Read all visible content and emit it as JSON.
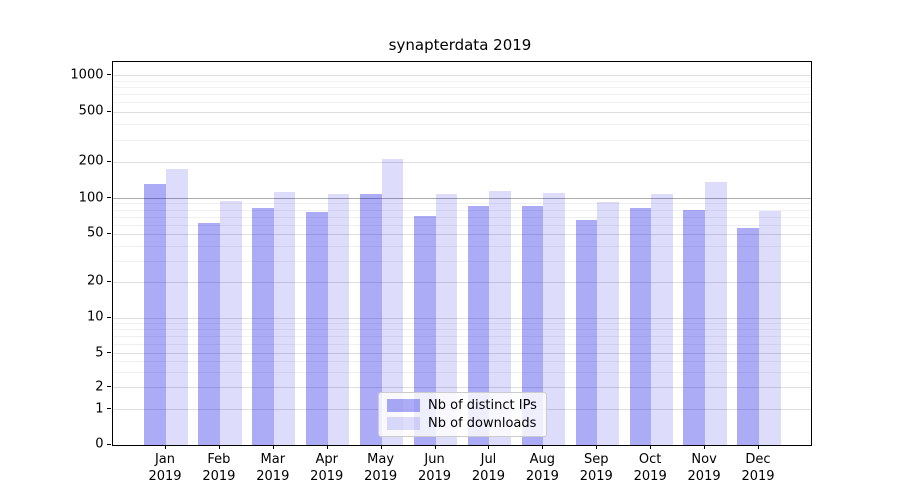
{
  "chart_data": {
    "type": "bar",
    "title": "synapterdata 2019",
    "grid": true,
    "yscale": "symlog",
    "yticks": [
      0,
      1,
      2,
      5,
      10,
      20,
      50,
      100,
      200,
      500,
      1000
    ],
    "minor_gridline_values": [
      3,
      4,
      6,
      7,
      8,
      9,
      30,
      40,
      60,
      70,
      80,
      90,
      300,
      400,
      600,
      700,
      800,
      900
    ],
    "months": [
      "Jan",
      "Feb",
      "Mar",
      "Apr",
      "May",
      "Jun",
      "Jul",
      "Aug",
      "Sep",
      "Oct",
      "Nov",
      "Dec"
    ],
    "year_label": "2019",
    "series": [
      {
        "name": "Nb of distinct IPs",
        "key": "distinct-ips",
        "color": "#a9a9f7",
        "fill": "rgba(13,13,230,0.35)",
        "values": [
          131,
          62,
          82,
          76,
          108,
          71,
          85,
          86,
          65,
          82,
          79,
          56
        ]
      },
      {
        "name": "Nb of downloads",
        "key": "downloads",
        "color": "#dcdcfb",
        "fill": "rgba(13,13,230,0.14)",
        "values": [
          175,
          95,
          112,
          107,
          212,
          109,
          115,
          110,
          93,
          109,
          135,
          78
        ]
      }
    ],
    "legend_position": "lower center",
    "colors": {
      "major_gridline": "#dedede",
      "emphasized_gridline_100": "#ababab",
      "minor_gridline": "#f0f0f0",
      "axis": "#000000"
    }
  }
}
